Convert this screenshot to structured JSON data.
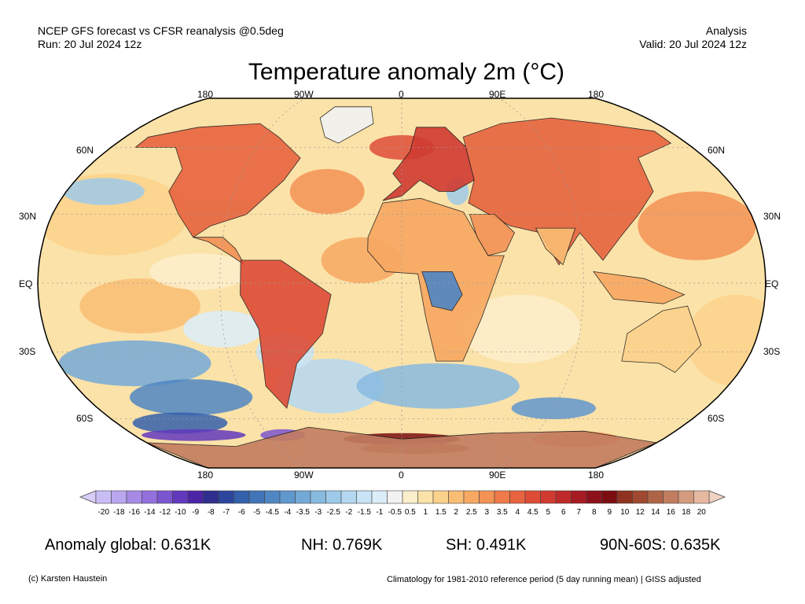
{
  "header": {
    "model_line": "NCEP GFS forecast vs CFSR reanalysis @0.5deg",
    "run_line": "Run: 20 Jul 2024 12z",
    "mode": "Analysis",
    "valid_line": "Valid: 20 Jul 2024 12z",
    "title": "Temperature anomaly 2m (°C)"
  },
  "map": {
    "projection": "robinson",
    "lon_labels_top": [
      "180",
      "90W",
      "0",
      "90E",
      "180"
    ],
    "lon_labels_bottom": [
      "180",
      "90W",
      "0",
      "90E",
      "180"
    ],
    "lat_labels_left": [
      "60N",
      "30N",
      "EQ",
      "30S",
      "60S"
    ],
    "lat_labels_right": [
      "60N",
      "30N",
      "EQ",
      "30S",
      "60S"
    ]
  },
  "colorbar": {
    "labels": [
      "-20",
      "-18",
      "-16",
      "-14",
      "-12",
      "-10",
      "-9",
      "-8",
      "-7",
      "-6",
      "-5",
      "-4.5",
      "-4",
      "-3.5",
      "-3",
      "-2.5",
      "-2",
      "-1.5",
      "-1",
      "-0.5",
      "0.5",
      "1",
      "1.5",
      "2",
      "2.5",
      "3",
      "3.5",
      "4",
      "4.5",
      "5",
      "6",
      "7",
      "8",
      "9",
      "10",
      "12",
      "14",
      "16",
      "18",
      "20"
    ],
    "colors": [
      "#c9bdf5",
      "#b9a6ef",
      "#a68ae6",
      "#9370dc",
      "#7b55cf",
      "#6238bd",
      "#4b25a6",
      "#2f2e8e",
      "#2c469e",
      "#3460ab",
      "#4274b8",
      "#4f86c3",
      "#6097cd",
      "#74a9d7",
      "#88bae0",
      "#9ecae9",
      "#b4d8f1",
      "#c8e4f6",
      "#dcedfa",
      "#f2f2f2",
      "#fbeecb",
      "#fbe2a8",
      "#fbd28c",
      "#f9bd74",
      "#f7a862",
      "#f39255",
      "#ee7b49",
      "#e7643f",
      "#de4c37",
      "#d03a31",
      "#be2a2a",
      "#a71b23",
      "#8c111b",
      "#7a0e10",
      "#8f3320",
      "#9f4a30",
      "#b06447",
      "#c27d60",
      "#d49a7e",
      "#e6b8a0"
    ]
  },
  "stats": {
    "global": "Anomaly global: 0.631K",
    "nh": "NH: 0.769K",
    "sh": "SH: 0.491K",
    "arctic": "90N-60S: 0.635K"
  },
  "footer": {
    "credit": "(c) Karsten Haustein",
    "note": "Climatology for 1981-2010 reference period (5 day running mean) | GISS adjusted"
  }
}
